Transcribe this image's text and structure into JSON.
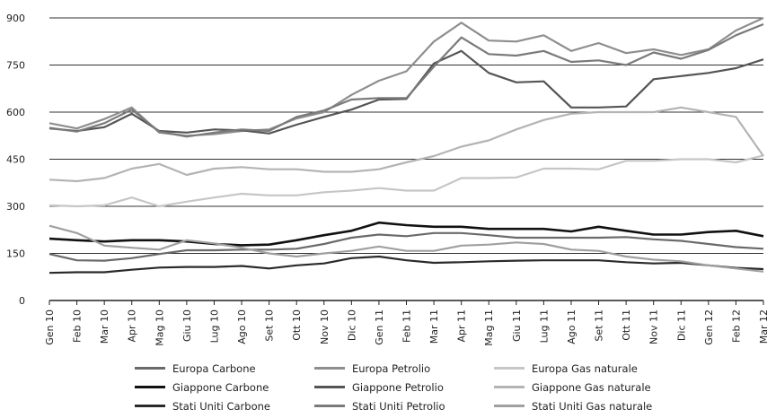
{
  "chart_data": {
    "type": "line",
    "title": "",
    "xlabel": "",
    "ylabel": "",
    "ylim": [
      0,
      900
    ],
    "yticks": [
      0,
      150,
      300,
      450,
      600,
      750,
      900
    ],
    "grid": "horizontal",
    "legend_position": "bottom",
    "categories": [
      "Gen 10",
      "Feb 10",
      "Mar 10",
      "Apr 10",
      "Mag 10",
      "Giu 10",
      "Lug 10",
      "Ago 10",
      "Set 10",
      "Ott 10",
      "Nov 10",
      "Dic 10",
      "Gen 11",
      "Feb 11",
      "Mar 11",
      "Apr 11",
      "Mag 11",
      "Giu 11",
      "Lug 11",
      "Ago 11",
      "Set 11",
      "Ott 11",
      "Nov 11",
      "Dic 11",
      "Gen 12",
      "Feb 12",
      "Mar 12"
    ],
    "series": [
      {
        "name": "Europa Carbone",
        "color": "#6a6a6a",
        "width": 2.2,
        "values": [
          148,
          128,
          127,
          135,
          148,
          160,
          160,
          162,
          162,
          165,
          180,
          200,
          210,
          205,
          215,
          215,
          208,
          200,
          200,
          200,
          200,
          202,
          195,
          190,
          180,
          170,
          165
        ]
      },
      {
        "name": "Europa Petrolio",
        "color": "#8e8e8e",
        "width": 2.2,
        "values": [
          565,
          548,
          578,
          615,
          535,
          525,
          530,
          540,
          545,
          580,
          600,
          655,
          700,
          730,
          825,
          885,
          828,
          825,
          845,
          795,
          820,
          788,
          800,
          782,
          800,
          860,
          900
        ]
      },
      {
        "name": "Europa Gas naturale",
        "color": "#c6c6c6",
        "width": 2.2,
        "values": [
          303,
          300,
          303,
          328,
          300,
          315,
          328,
          340,
          335,
          335,
          345,
          350,
          358,
          350,
          350,
          390,
          390,
          392,
          420,
          420,
          418,
          445,
          445,
          450,
          450,
          440,
          462
        ]
      },
      {
        "name": "Giappone Carbone",
        "color": "#111111",
        "width": 2.6,
        "values": [
          197,
          192,
          188,
          192,
          192,
          188,
          180,
          176,
          178,
          192,
          208,
          222,
          248,
          240,
          235,
          235,
          228,
          228,
          228,
          220,
          235,
          222,
          210,
          210,
          218,
          222,
          205
        ]
      },
      {
        "name": "Giappone Petrolio",
        "color": "#555555",
        "width": 2.2,
        "values": [
          548,
          540,
          552,
          595,
          540,
          535,
          545,
          542,
          532,
          560,
          585,
          608,
          640,
          642,
          755,
          795,
          725,
          695,
          698,
          615,
          615,
          618,
          705,
          715,
          725,
          740,
          768
        ]
      },
      {
        "name": "Giappone Gas naturale",
        "color": "#b4b4b4",
        "width": 2.2,
        "values": [
          385,
          380,
          390,
          420,
          435,
          400,
          420,
          425,
          418,
          418,
          410,
          410,
          418,
          440,
          460,
          490,
          510,
          545,
          575,
          595,
          600,
          600,
          600,
          615,
          600,
          585,
          460
        ]
      },
      {
        "name": "Stati Uniti Carbone",
        "color": "#2a2a2a",
        "width": 2.2,
        "values": [
          88,
          90,
          90,
          98,
          105,
          107,
          107,
          110,
          102,
          112,
          118,
          135,
          140,
          128,
          120,
          122,
          125,
          127,
          128,
          128,
          128,
          122,
          118,
          120,
          112,
          104,
          100
        ]
      },
      {
        "name": "Stati Uniti Petrolio",
        "color": "#7a7a7a",
        "width": 2.2,
        "values": [
          550,
          538,
          565,
          608,
          538,
          522,
          535,
          545,
          540,
          585,
          605,
          640,
          645,
          645,
          745,
          838,
          785,
          780,
          795,
          760,
          765,
          750,
          790,
          770,
          798,
          845,
          880
        ]
      },
      {
        "name": "Stati Uniti Gas naturale",
        "color": "#a0a0a0",
        "width": 2.2,
        "values": [
          238,
          215,
          175,
          168,
          162,
          192,
          182,
          168,
          150,
          140,
          150,
          158,
          172,
          158,
          158,
          175,
          178,
          185,
          180,
          162,
          158,
          140,
          130,
          125,
          112,
          102,
          92
        ]
      }
    ]
  }
}
